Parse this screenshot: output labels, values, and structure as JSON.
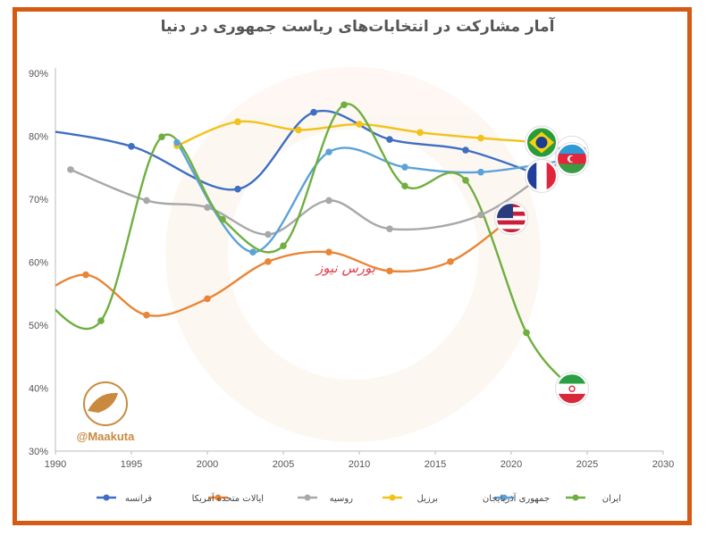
{
  "title": "آمار مشارکت در انتخابات‌های ریاست جمهوری در دنیا",
  "watermark": "بورس نیوز",
  "brand": "@Maakuta",
  "colors": {
    "frame": "#d55a13",
    "grid_axis": "#bbbbbb"
  },
  "chart_data": {
    "type": "line",
    "title": "آمار مشارکت در انتخابات‌های ریاست جمهوری در دنیا",
    "xlabel": "",
    "ylabel": "",
    "xlim": [
      1990,
      2030
    ],
    "ylim": [
      30,
      90
    ],
    "x_ticks": [
      "1990",
      "1995",
      "2000",
      "2005",
      "2010",
      "2015",
      "2020",
      "2025",
      "2030"
    ],
    "y_ticks": [
      "30%",
      "40%",
      "50%",
      "60%",
      "70%",
      "80%",
      "90%"
    ],
    "grid": false,
    "legend_position": "bottom",
    "series": [
      {
        "name": "فرانسه",
        "color": "#3e6fc2",
        "icon": "france-flag-icon",
        "points": [
          [
            1988,
            81.4
          ],
          [
            1995,
            78.4
          ],
          [
            2002,
            71.6
          ],
          [
            2007,
            83.8
          ],
          [
            2012,
            79.5
          ],
          [
            2017,
            77.8
          ],
          [
            2022,
            73.7
          ]
        ]
      },
      {
        "name": "ایالات متحده آمریکا",
        "color": "#e98536",
        "icon": "usa-flag-icon",
        "points": [
          [
            1988,
            53.0
          ],
          [
            1992,
            58.0
          ],
          [
            1996,
            51.6
          ],
          [
            2000,
            54.2
          ],
          [
            2004,
            60.1
          ],
          [
            2008,
            61.6
          ],
          [
            2012,
            58.6
          ],
          [
            2016,
            60.1
          ],
          [
            2020,
            67.0
          ]
        ]
      },
      {
        "name": "روسیه",
        "color": "#a8a8a8",
        "icon": "russia-flag-icon",
        "points": [
          [
            1991,
            74.7
          ],
          [
            1996,
            69.8
          ],
          [
            2000,
            68.7
          ],
          [
            2004,
            64.4
          ],
          [
            2008,
            69.8
          ],
          [
            2012,
            65.3
          ],
          [
            2018,
            67.5
          ],
          [
            2024,
            77.4
          ]
        ]
      },
      {
        "name": "برزیل",
        "color": "#f2c21a",
        "icon": "brazil-flag-icon",
        "points": [
          [
            1998,
            78.5
          ],
          [
            2002,
            82.3
          ],
          [
            2006,
            81.0
          ],
          [
            2010,
            81.9
          ],
          [
            2014,
            80.6
          ],
          [
            2018,
            79.7
          ],
          [
            2022,
            79.0
          ]
        ]
      },
      {
        "name": "جمهوری آذربایجان",
        "color": "#5ba2d9",
        "icon": "azerbaijan-flag-icon",
        "points": [
          [
            1998,
            79.0
          ],
          [
            2003,
            61.6
          ],
          [
            2008,
            77.5
          ],
          [
            2013,
            75.1
          ],
          [
            2018,
            74.3
          ],
          [
            2024,
            76.4
          ]
        ]
      },
      {
        "name": "ایران",
        "color": "#6faf40",
        "icon": "iran-flag-icon",
        "points": [
          [
            1989,
            54.6
          ],
          [
            1993,
            50.7
          ],
          [
            1997,
            79.9
          ],
          [
            2001,
            66.8
          ],
          [
            2005,
            62.6
          ],
          [
            2009,
            85.0
          ],
          [
            2013,
            72.1
          ],
          [
            2017,
            73.0
          ],
          [
            2021,
            48.8
          ],
          [
            2024,
            39.9
          ]
        ]
      }
    ]
  }
}
